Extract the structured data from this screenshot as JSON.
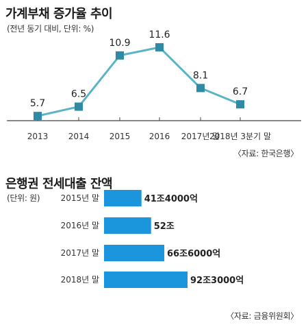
{
  "chart_data": [
    {
      "type": "line",
      "title": "가계부채 증가율 추이",
      "subtitle": "(전년 동기 대비, 단위: %)",
      "source": "〈자료: 한국은행〉",
      "categories": [
        "2013",
        "2014",
        "2015",
        "2016",
        "2017년 말",
        "2018년  3분기 말"
      ],
      "values": [
        5.7,
        6.5,
        10.9,
        11.6,
        8.1,
        6.7
      ],
      "value_labels": [
        "5.7",
        "6.5",
        "10.9",
        "11.6",
        "8.1",
        "6.7"
      ],
      "ylim": [
        4.0,
        12.6
      ],
      "grid": false,
      "color": "#5bb4c6",
      "marker_color": "#2f8aa6"
    },
    {
      "type": "bar",
      "orientation": "horizontal",
      "title": "은행권 전세대출 잔액",
      "subtitle": "(단위: 원)",
      "source": "〈자료: 금융위원회〉",
      "categories": [
        "2015년 말",
        "2016년 말",
        "2017년 말",
        "2018년 말"
      ],
      "values": [
        41.4,
        52.0,
        66.6,
        92.3
      ],
      "value_labels": [
        "41조4000억",
        "52조",
        "66조6000억",
        "92조3000억"
      ],
      "color": "#1b96dc"
    }
  ]
}
